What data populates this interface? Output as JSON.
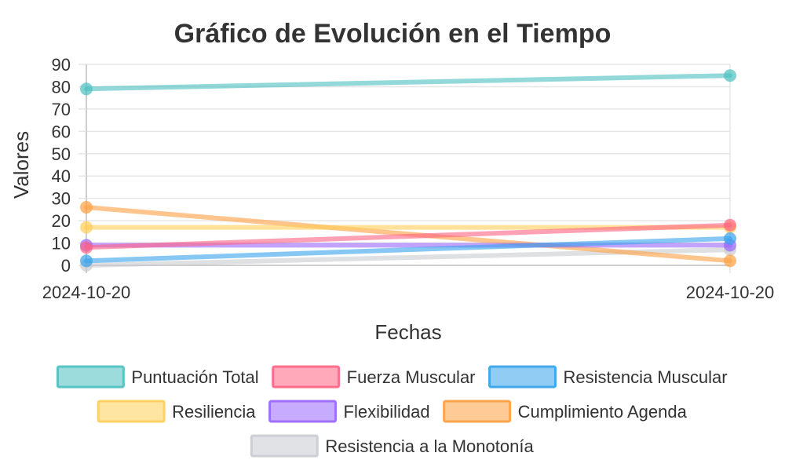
{
  "chart_data": {
    "type": "line",
    "title": "Gráfico de Evolución en el Tiempo",
    "xlabel": "Fechas",
    "ylabel": "Valores",
    "categories": [
      "2024-10-20",
      "2024-10-20"
    ],
    "ylim": [
      0,
      90
    ],
    "yticks": [
      0,
      10,
      20,
      30,
      40,
      50,
      60,
      70,
      80,
      90
    ],
    "yticks_labels": [
      "0",
      "10",
      "20",
      "30",
      "40",
      "50",
      "60",
      "70",
      "80",
      "90"
    ],
    "grid": true,
    "legend_position": "bottom",
    "series": [
      {
        "name": "Puntuación Total",
        "values": [
          79,
          85
        ],
        "color": "#4bc0c0"
      },
      {
        "name": "Fuerza Muscular",
        "values": [
          8,
          18
        ],
        "color": "#ff6384"
      },
      {
        "name": "Resistencia Muscular",
        "values": [
          2,
          12
        ],
        "color": "#36a2eb"
      },
      {
        "name": "Resiliencia",
        "values": [
          17,
          17
        ],
        "color": "#ffcd56"
      },
      {
        "name": "Flexibilidad",
        "values": [
          9,
          9
        ],
        "color": "#9966ff"
      },
      {
        "name": "Cumplimiento Agenda",
        "values": [
          26,
          2
        ],
        "color": "#ff9f40"
      },
      {
        "name": "Resistencia a la Monotonía",
        "values": [
          0,
          7
        ],
        "color": "#c9cbcf"
      }
    ]
  }
}
